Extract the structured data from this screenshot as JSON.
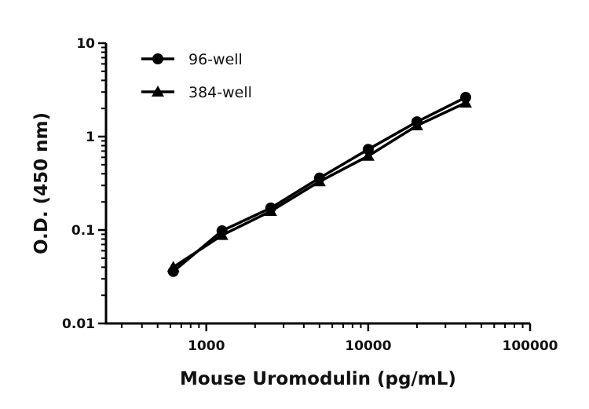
{
  "chart_data": {
    "type": "line",
    "title": "",
    "xlabel": "Mouse Uromodulin (pg/mL)",
    "ylabel": "O.D. (450 nm)",
    "xscale": "log",
    "yscale": "log",
    "xlim": [
      240,
      100000
    ],
    "ylim": [
      0.01,
      10
    ],
    "xticks": [
      {
        "value": 1000,
        "label": "1000"
      },
      {
        "value": 10000,
        "label": "10000"
      },
      {
        "value": 100000,
        "label": "100000"
      }
    ],
    "yticks": [
      {
        "value": 0.01,
        "label": "0.01"
      },
      {
        "value": 0.1,
        "label": "0.1"
      },
      {
        "value": 1,
        "label": "1"
      },
      {
        "value": 10,
        "label": "10"
      }
    ],
    "grid": false,
    "legend_position": "top-left",
    "color": "#000000",
    "x": [
      625,
      1250,
      2500,
      5000,
      10000,
      20000,
      40000
    ],
    "series": [
      {
        "name": "96-well",
        "marker": "circle",
        "values": [
          0.036,
          0.098,
          0.172,
          0.36,
          0.73,
          1.44,
          2.63
        ]
      },
      {
        "name": "384-well",
        "marker": "triangle",
        "values": [
          0.04,
          0.088,
          0.159,
          0.33,
          0.62,
          1.31,
          2.3
        ]
      }
    ]
  }
}
